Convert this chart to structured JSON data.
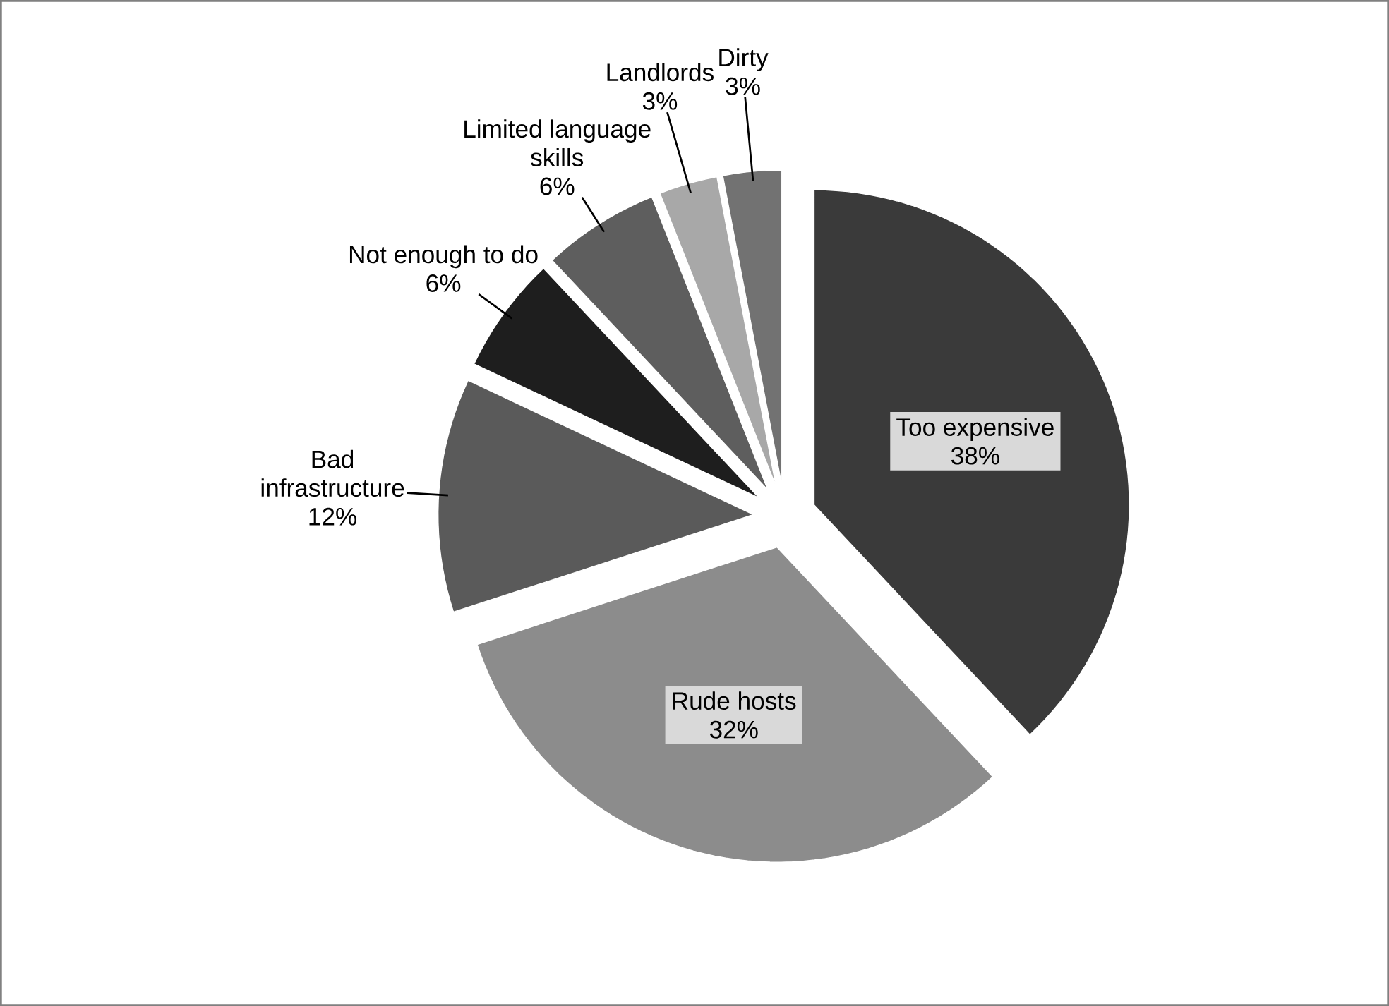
{
  "chart_data": {
    "type": "pie",
    "categories": [
      "Too expensive",
      "Rude hosts",
      "Bad infrastructure",
      "Not enough to do",
      "Limited language skills",
      "Landlords",
      "Dirty"
    ],
    "values": [
      38,
      32,
      12,
      6,
      6,
      3,
      3
    ],
    "value_labels": [
      "38%",
      "32%",
      "12%",
      "6%",
      "6%",
      "3%",
      "3%"
    ],
    "colors": [
      "#3a3a3a",
      "#8c8c8c",
      "#5a5a5a",
      "#1e1e1e",
      "#5e5e5e",
      "#a8a8a8",
      "#727272"
    ]
  }
}
